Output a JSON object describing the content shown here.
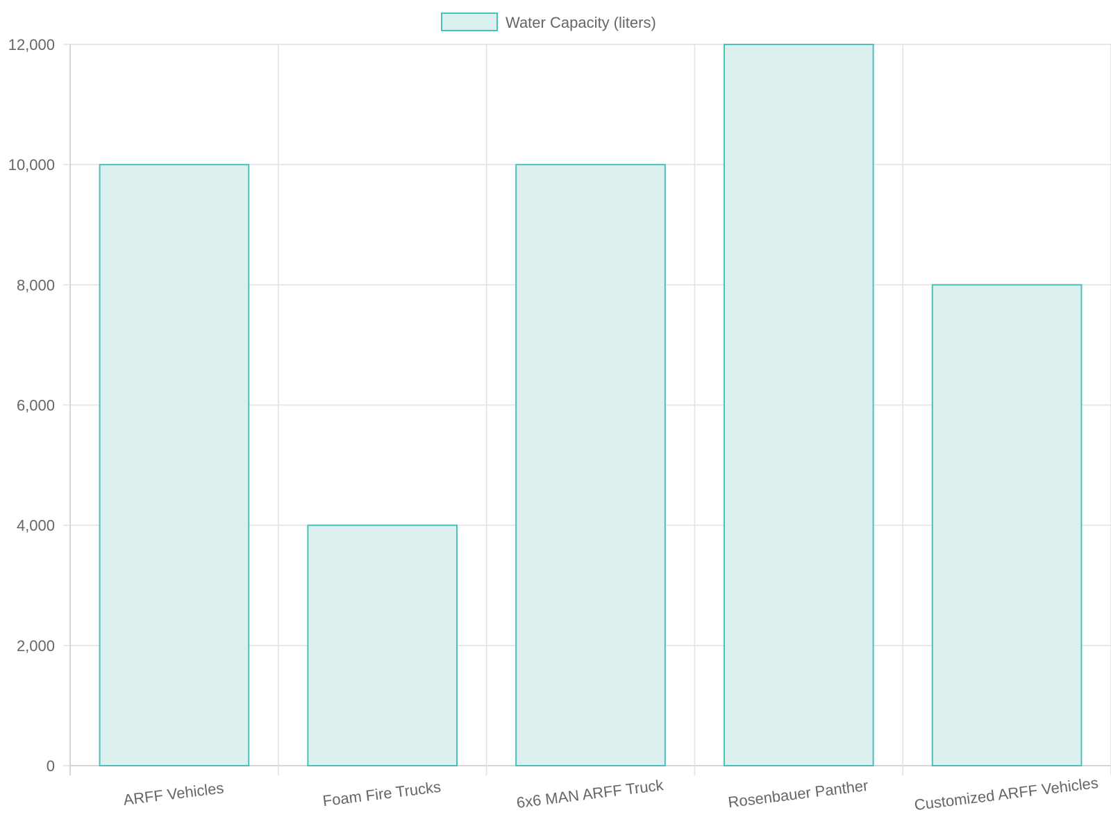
{
  "legend": {
    "label": "Water Capacity (liters)"
  },
  "colors": {
    "bar_fill": "#dcf1ef",
    "bar_stroke": "#4bbfb8",
    "grid": "#e1e1e1",
    "axis": "#c8c8c8",
    "text": "#666666"
  },
  "chart_data": {
    "type": "bar",
    "categories": [
      "ARFF Vehicles",
      "Foam Fire Trucks",
      "6x6 MAN ARFF Truck",
      "Rosenbauer Panther",
      "Customized ARFF Vehicles"
    ],
    "series": [
      {
        "name": "Water Capacity (liters)",
        "values": [
          10000,
          4000,
          10000,
          12000,
          8000
        ]
      }
    ],
    "title": "",
    "xlabel": "",
    "ylabel": "",
    "ylim": [
      0,
      12000
    ],
    "yticks": [
      "0",
      "2,000",
      "4,000",
      "6,000",
      "8,000",
      "10,000",
      "12,000"
    ],
    "grid": true,
    "legend_position": "top-center"
  }
}
